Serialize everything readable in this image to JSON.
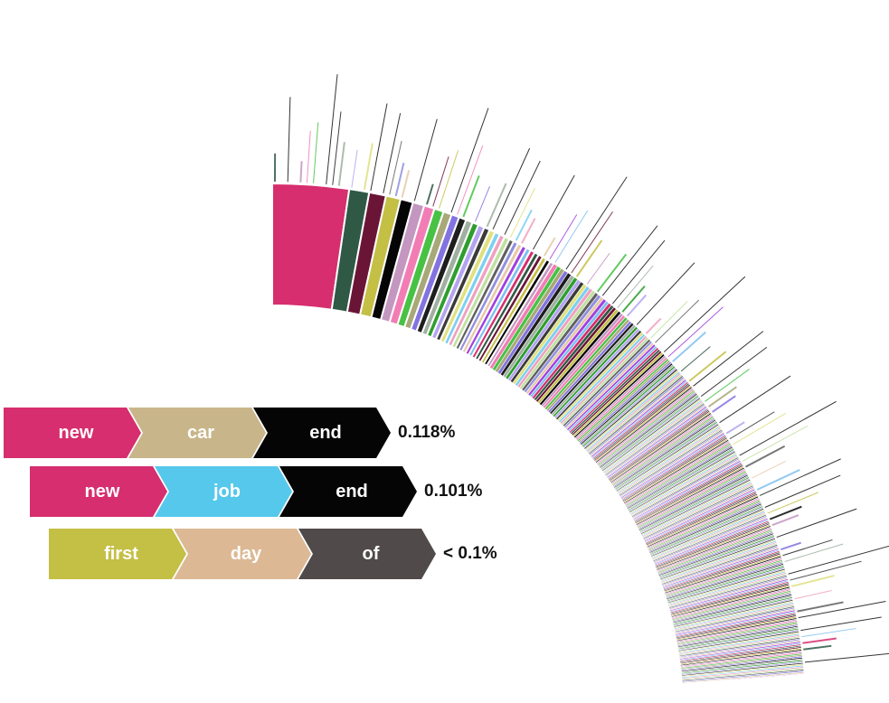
{
  "colors": {
    "new": "#d62e6e",
    "car": "#c8b68a",
    "end": "#050505",
    "job": "#55c8ec",
    "first": "#c4bf45",
    "day": "#dcb994",
    "of": "#504a4a"
  },
  "sequences": [
    {
      "words": [
        "new",
        "car",
        "end"
      ],
      "colors": [
        "#d62e6e",
        "#c8b68a",
        "#050505"
      ],
      "percentage": "0.118%"
    },
    {
      "words": [
        "new",
        "job",
        "end"
      ],
      "colors": [
        "#d62e6e",
        "#55c8ec",
        "#050505"
      ],
      "percentage": "0.101%"
    },
    {
      "words": [
        "first",
        "day",
        "of"
      ],
      "colors": [
        "#c4bf45",
        "#dcb994",
        "#504a4a"
      ],
      "percentage": "< 0.1%"
    }
  ],
  "palette": [
    "#d62e6e",
    "#2f5945",
    "#6a1536",
    "#c4bf45",
    "#050505",
    "#c397c0",
    "#f27db5",
    "#47c244",
    "#a8a878",
    "#8373e0",
    "#1e1e1e",
    "#a0b0a0",
    "#2e9e2e",
    "#b4a4f0",
    "#3a3a3a",
    "#e0e080",
    "#7dd0f0",
    "#f0a0c0",
    "#c0e0a0",
    "#606060",
    "#9090e0",
    "#e6c9a8",
    "#a040e0",
    "#80c0f0"
  ]
}
